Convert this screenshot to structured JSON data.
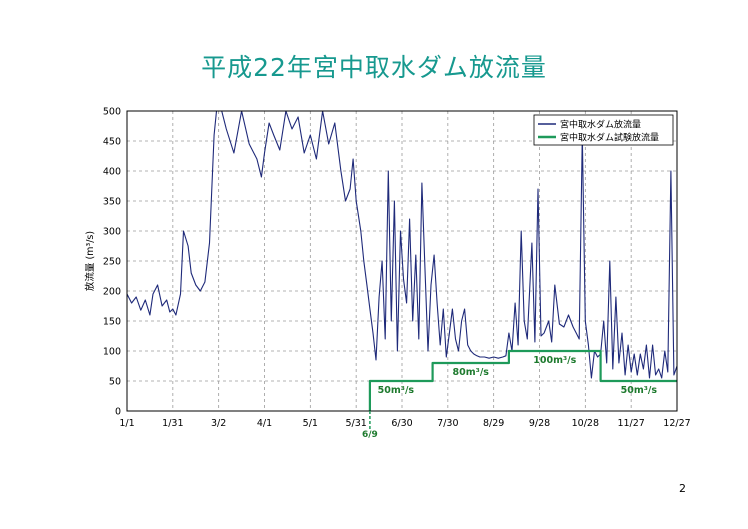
{
  "slide": {
    "title": "平成22年宮中取水ダム放流量",
    "page_number": "2"
  },
  "colors": {
    "title": "#17998f",
    "discharge_series": "#1f2a7a",
    "test_release_series": "#1e9a5a",
    "annotation": "#1e7a2e",
    "grid": "#9a9a9a"
  },
  "chart_data": {
    "type": "line",
    "title": "",
    "xlabel": "",
    "ylabel_text": "放流量",
    "ylabel_unit": "(m³/s)",
    "ylim": [
      0,
      500
    ],
    "xlim": [
      0,
      360
    ],
    "y_ticks": [
      0,
      50,
      100,
      150,
      200,
      250,
      300,
      350,
      400,
      450,
      500
    ],
    "x_ticks": [
      {
        "label": "1/1",
        "day": 0
      },
      {
        "label": "1/31",
        "day": 30
      },
      {
        "label": "3/2",
        "day": 60
      },
      {
        "label": "4/1",
        "day": 90
      },
      {
        "label": "5/1",
        "day": 120
      },
      {
        "label": "5/31",
        "day": 150
      },
      {
        "label": "6/30",
        "day": 180
      },
      {
        "label": "7/30",
        "day": 210
      },
      {
        "label": "8/29",
        "day": 240
      },
      {
        "label": "9/28",
        "day": 270
      },
      {
        "label": "10/28",
        "day": 300
      },
      {
        "label": "11/27",
        "day": 330
      },
      {
        "label": "12/27",
        "day": 360
      }
    ],
    "grid": true,
    "legend_position": "top-right",
    "series": [
      {
        "name": "宮中取水ダム放流量",
        "points": [
          [
            0,
            195
          ],
          [
            3,
            180
          ],
          [
            6,
            190
          ],
          [
            9,
            168
          ],
          [
            12,
            185
          ],
          [
            15,
            160
          ],
          [
            17,
            195
          ],
          [
            20,
            210
          ],
          [
            23,
            175
          ],
          [
            26,
            185
          ],
          [
            28,
            165
          ],
          [
            30,
            170
          ],
          [
            32,
            160
          ],
          [
            35,
            195
          ],
          [
            37,
            300
          ],
          [
            40,
            275
          ],
          [
            42,
            230
          ],
          [
            45,
            210
          ],
          [
            48,
            200
          ],
          [
            51,
            215
          ],
          [
            54,
            280
          ],
          [
            57,
            460
          ],
          [
            59,
            510
          ],
          [
            61,
            510
          ],
          [
            65,
            470
          ],
          [
            70,
            430
          ],
          [
            75,
            500
          ],
          [
            80,
            445
          ],
          [
            85,
            420
          ],
          [
            88,
            390
          ],
          [
            90,
            430
          ],
          [
            93,
            480
          ],
          [
            96,
            460
          ],
          [
            100,
            435
          ],
          [
            104,
            500
          ],
          [
            108,
            470
          ],
          [
            112,
            490
          ],
          [
            116,
            430
          ],
          [
            120,
            460
          ],
          [
            124,
            420
          ],
          [
            128,
            500
          ],
          [
            132,
            445
          ],
          [
            136,
            480
          ],
          [
            140,
            400
          ],
          [
            143,
            350
          ],
          [
            146,
            370
          ],
          [
            148,
            420
          ],
          [
            150,
            350
          ],
          [
            153,
            300
          ],
          [
            155,
            250
          ],
          [
            157,
            210
          ],
          [
            159,
            170
          ],
          [
            161,
            130
          ],
          [
            163,
            85
          ],
          [
            165,
            190
          ],
          [
            167,
            250
          ],
          [
            169,
            120
          ],
          [
            171,
            400
          ],
          [
            173,
            150
          ],
          [
            175,
            350
          ],
          [
            177,
            100
          ],
          [
            179,
            300
          ],
          [
            181,
            220
          ],
          [
            183,
            180
          ],
          [
            185,
            320
          ],
          [
            187,
            150
          ],
          [
            189,
            260
          ],
          [
            191,
            120
          ],
          [
            193,
            380
          ],
          [
            195,
            240
          ],
          [
            197,
            100
          ],
          [
            199,
            210
          ],
          [
            201,
            260
          ],
          [
            203,
            180
          ],
          [
            205,
            110
          ],
          [
            207,
            170
          ],
          [
            209,
            90
          ],
          [
            211,
            130
          ],
          [
            213,
            170
          ],
          [
            215,
            120
          ],
          [
            217,
            100
          ],
          [
            219,
            150
          ],
          [
            221,
            170
          ],
          [
            223,
            110
          ],
          [
            225,
            100
          ],
          [
            227,
            95
          ],
          [
            229,
            92
          ],
          [
            231,
            90
          ],
          [
            234,
            90
          ],
          [
            237,
            88
          ],
          [
            240,
            90
          ],
          [
            243,
            88
          ],
          [
            246,
            90
          ],
          [
            248,
            92
          ],
          [
            250,
            130
          ],
          [
            252,
            100
          ],
          [
            254,
            180
          ],
          [
            256,
            110
          ],
          [
            258,
            300
          ],
          [
            260,
            150
          ],
          [
            262,
            120
          ],
          [
            265,
            280
          ],
          [
            267,
            115
          ],
          [
            269,
            370
          ],
          [
            271,
            125
          ],
          [
            273,
            130
          ],
          [
            276,
            150
          ],
          [
            278,
            115
          ],
          [
            280,
            210
          ],
          [
            283,
            145
          ],
          [
            286,
            140
          ],
          [
            289,
            160
          ],
          [
            292,
            140
          ],
          [
            294,
            130
          ],
          [
            296,
            120
          ],
          [
            298,
            460
          ],
          [
            300,
            150
          ],
          [
            302,
            110
          ],
          [
            304,
            55
          ],
          [
            306,
            100
          ],
          [
            308,
            90
          ],
          [
            310,
            95
          ],
          [
            312,
            150
          ],
          [
            314,
            80
          ],
          [
            316,
            250
          ],
          [
            318,
            70
          ],
          [
            320,
            190
          ],
          [
            322,
            80
          ],
          [
            324,
            130
          ],
          [
            326,
            60
          ],
          [
            328,
            110
          ],
          [
            330,
            65
          ],
          [
            332,
            95
          ],
          [
            334,
            60
          ],
          [
            336,
            95
          ],
          [
            338,
            70
          ],
          [
            340,
            110
          ],
          [
            342,
            55
          ],
          [
            344,
            110
          ],
          [
            346,
            60
          ],
          [
            348,
            70
          ],
          [
            350,
            55
          ],
          [
            352,
            100
          ],
          [
            354,
            65
          ],
          [
            356,
            400
          ],
          [
            358,
            60
          ],
          [
            360,
            75
          ]
        ]
      },
      {
        "name": "宮中取水ダム試験放流量",
        "points": [
          [
            159,
            0
          ],
          [
            159,
            50
          ],
          [
            200,
            50
          ],
          [
            200,
            80
          ],
          [
            250,
            80
          ],
          [
            250,
            100
          ],
          [
            310,
            100
          ],
          [
            310,
            50
          ],
          [
            360,
            50
          ]
        ]
      }
    ],
    "annotations": [
      {
        "text": "50m³/s",
        "day": 176,
        "value": 30
      },
      {
        "text": "80m³/s",
        "day": 225,
        "value": 60
      },
      {
        "text": "100m³/s",
        "day": 280,
        "value": 80
      },
      {
        "text": "50m³/s",
        "day": 335,
        "value": 30
      },
      {
        "text": "6/9",
        "day": 159,
        "value": -40
      }
    ]
  }
}
